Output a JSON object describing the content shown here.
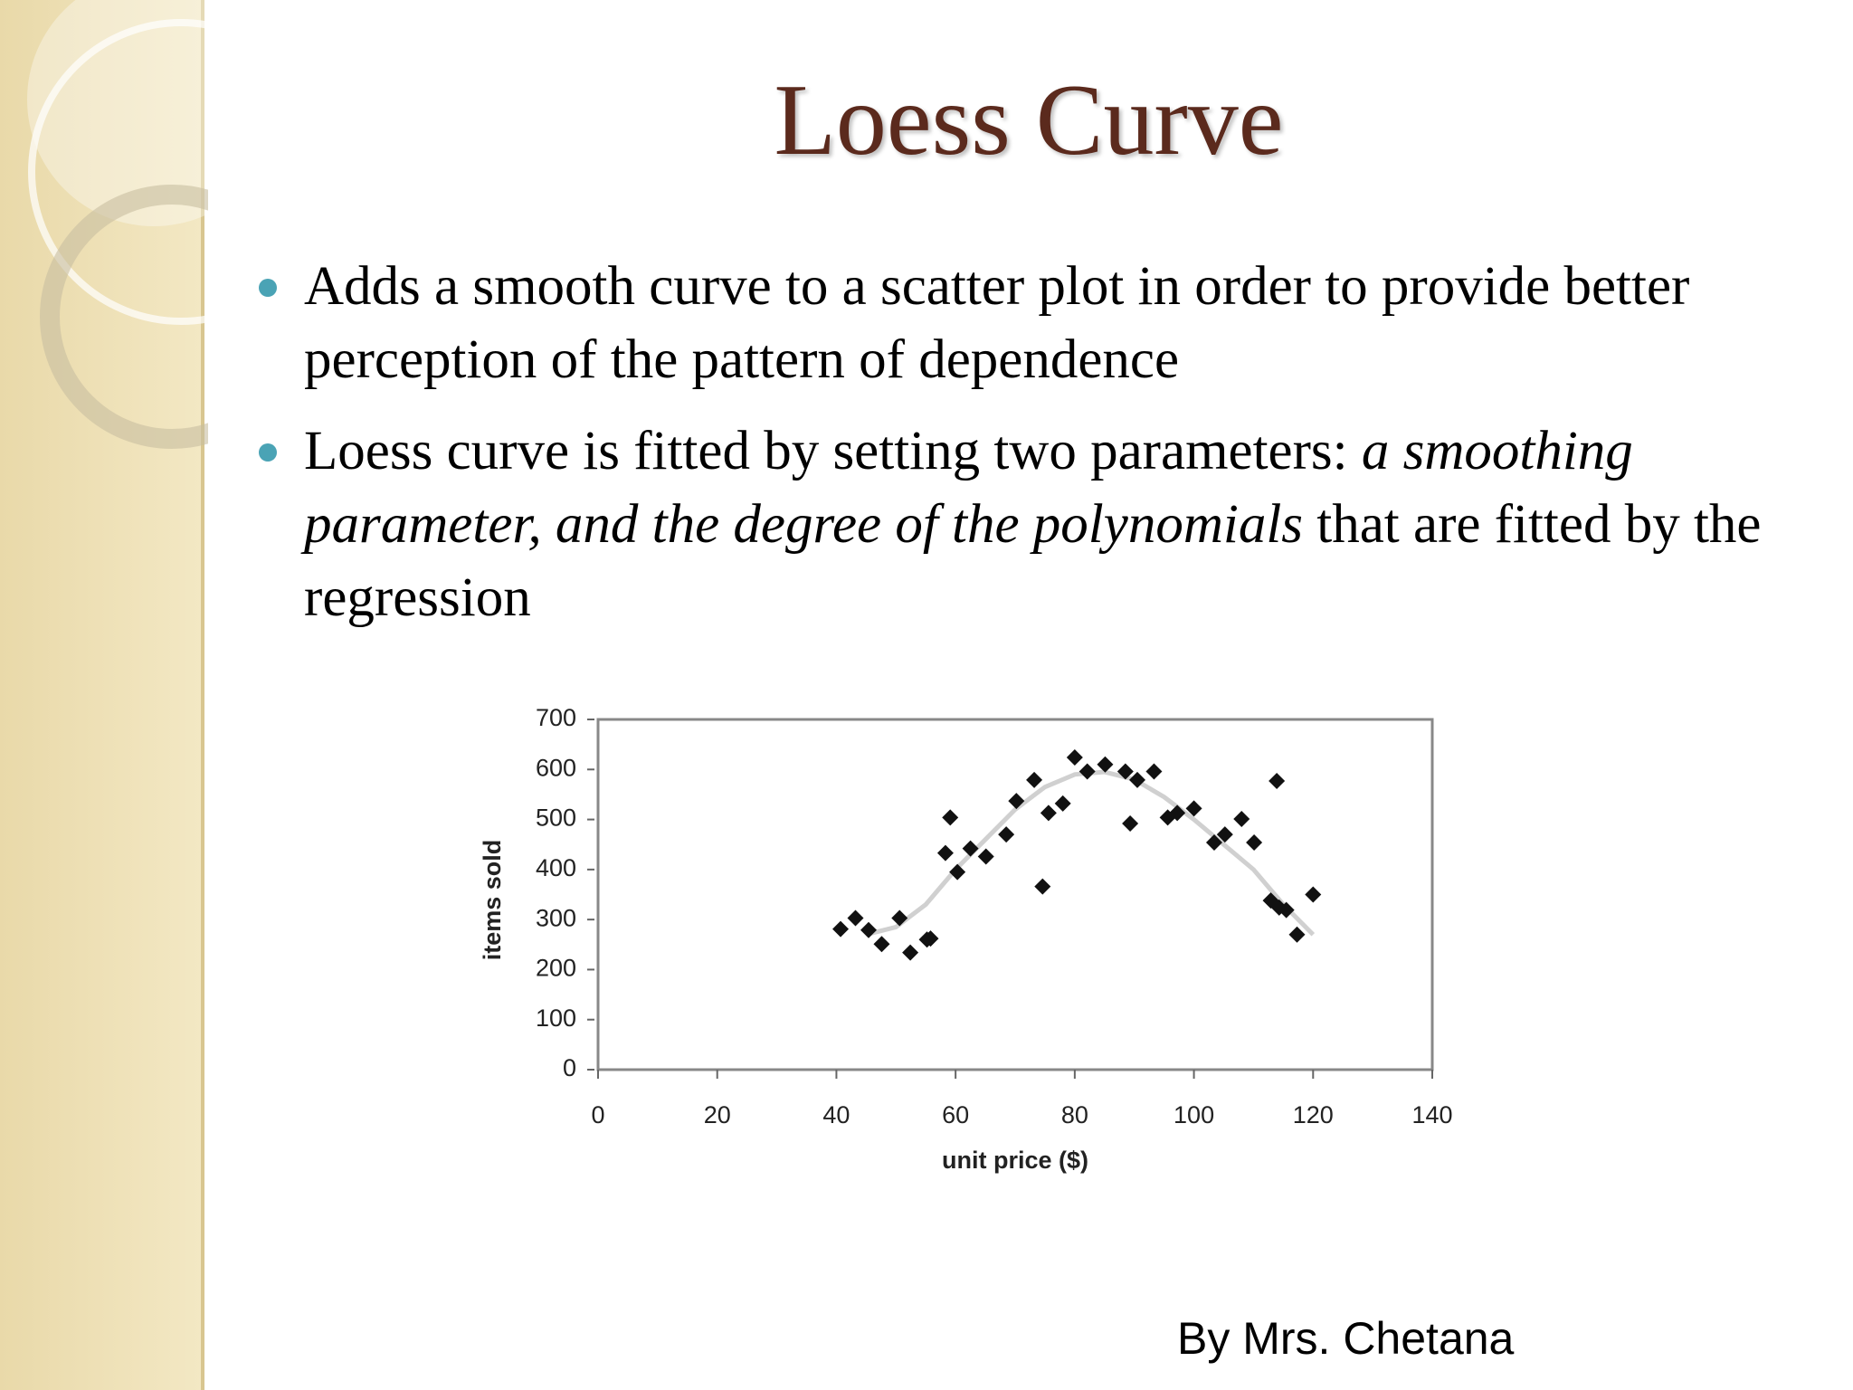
{
  "title": "Loess Curve",
  "bullets": [
    [
      "Adds a smooth curve to a scatter plot in order to provide better perception of the pattern of dependence"
    ],
    [
      "Loess curve is fitted by setting two parameters: ",
      "a smoothing parameter, and the degree of the polynomials",
      " that are fitted by the regression"
    ]
  ],
  "footer": "By Mrs. Chetana",
  "chart_data": {
    "type": "scatter",
    "xlabel": "unit price ($)",
    "ylabel": "items sold",
    "xlim": [
      0,
      140
    ],
    "xticks": [
      0,
      20,
      40,
      60,
      80,
      100,
      120,
      140
    ],
    "ylim": [
      0,
      700
    ],
    "yticks": [
      0,
      100,
      200,
      300,
      400,
      500,
      600,
      700
    ],
    "series": [
      {
        "type": "scatter",
        "color": "#111111",
        "x": [
          40.7,
          43.2,
          45.4,
          47.6,
          50.6,
          52.4,
          55.2,
          55.8,
          58.3,
          59.1,
          60.3,
          62.5,
          65.1,
          68.5,
          70.2,
          73.2,
          74.6,
          75.6,
          78,
          80,
          82.1,
          85.1,
          88.5,
          89.3,
          90.5,
          93.3,
          95.6,
          97.2,
          100,
          103.4,
          105.2,
          108,
          110.1,
          112.9,
          113.9,
          114.3,
          115.5,
          117.3,
          120
        ],
        "values": [
          281,
          303,
          279,
          251,
          303,
          234,
          260,
          262,
          433,
          504,
          395,
          442,
          426,
          470,
          537,
          579,
          366,
          513,
          532,
          624,
          596,
          610,
          596,
          492,
          579,
          596,
          504,
          513,
          522,
          454,
          470,
          501,
          454,
          338,
          577,
          324,
          319,
          270,
          350
        ]
      },
      {
        "type": "line",
        "color": "#d0d0d0",
        "x": [
          45,
          50,
          55,
          60,
          65,
          70,
          75,
          80,
          85,
          90,
          95,
          100,
          105,
          110,
          115,
          120
        ],
        "values": [
          270,
          285,
          330,
          400,
          460,
          520,
          565,
          590,
          595,
          580,
          545,
          500,
          450,
          400,
          330,
          270
        ]
      }
    ]
  }
}
